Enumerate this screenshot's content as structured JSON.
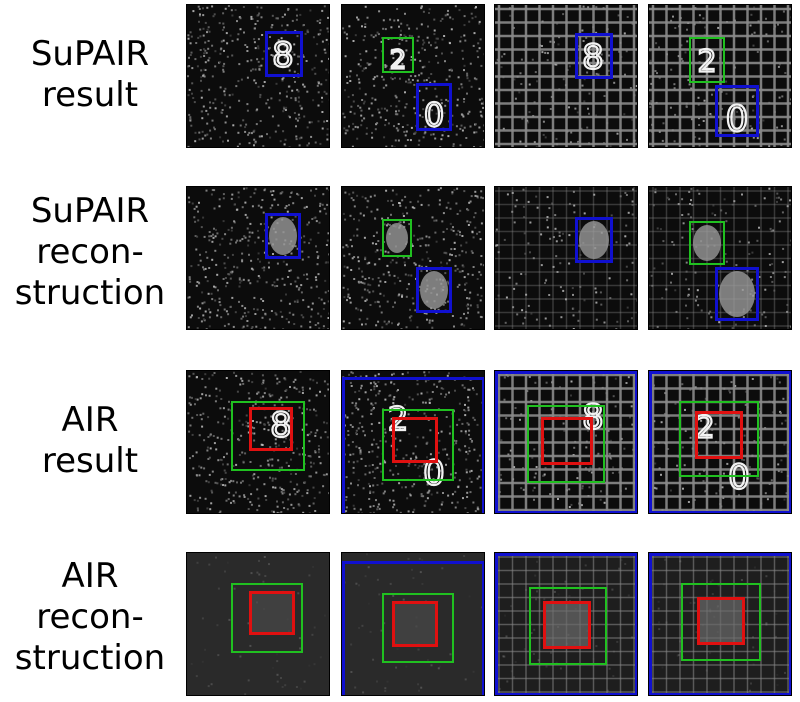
{
  "rows": [
    {
      "id": "supair-result",
      "label_lines": [
        "SuPAIR",
        "result"
      ],
      "kind": "result"
    },
    {
      "id": "supair-recon",
      "label_lines": [
        "SuPAIR",
        "recon-",
        "struction"
      ],
      "kind": "recon"
    },
    {
      "id": "air-result",
      "label_lines": [
        "AIR",
        "result"
      ],
      "kind": "result"
    },
    {
      "id": "air-recon",
      "label_lines": [
        "AIR",
        "recon-",
        "struction"
      ],
      "kind": "recon"
    }
  ],
  "columns": [
    {
      "background": "noise",
      "digits": [
        "8"
      ]
    },
    {
      "background": "noise",
      "digits": [
        "2",
        "0"
      ]
    },
    {
      "background": "grid",
      "digits": [
        "8"
      ]
    },
    {
      "background": "grid",
      "digits": [
        "2",
        "0"
      ]
    }
  ],
  "colors": {
    "blue": "#1010d0",
    "green": "#20c020",
    "red": "#e01010",
    "grid": "#8a8a8a"
  }
}
